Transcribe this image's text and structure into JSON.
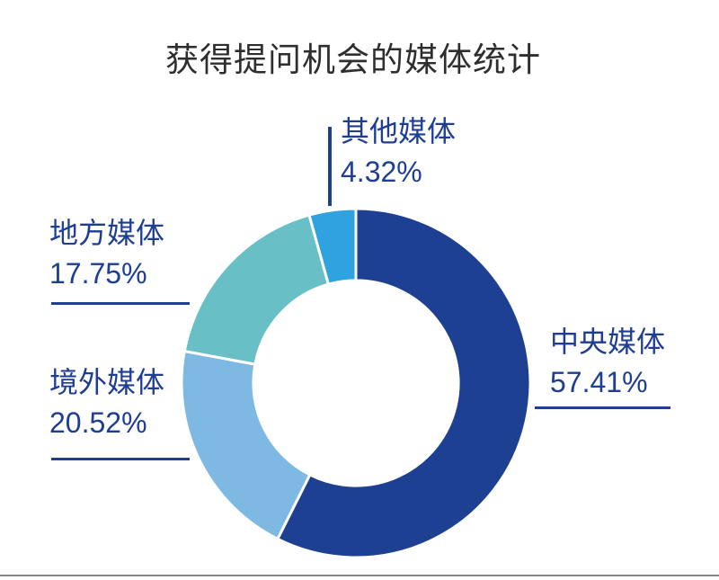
{
  "page": {
    "background": "#ffffff",
    "footer_line_color": "#848484"
  },
  "chart_data": {
    "type": "pie",
    "variant": "donut",
    "title": "获得提问机会的媒体统计",
    "direction": "clockwise",
    "start_angle_deg": 0,
    "inner_radius_ratio": 0.588,
    "separator_color": "#ffffff",
    "label_color": "#1d3e92",
    "title_color": "#2e2e2e",
    "legend_position": "callout-labels",
    "segments": [
      {
        "label": "中央媒体",
        "value": 57.41,
        "display": "57.41%",
        "color": "#1e4093"
      },
      {
        "label": "境外媒体",
        "value": 20.52,
        "display": "20.52%",
        "color": "#7db9e3"
      },
      {
        "label": "地方媒体",
        "value": 17.75,
        "display": "17.75%",
        "color": "#68bfc5"
      },
      {
        "label": "其他媒体",
        "value": 4.32,
        "display": "4.32%",
        "color": "#2fa3e0"
      }
    ]
  }
}
